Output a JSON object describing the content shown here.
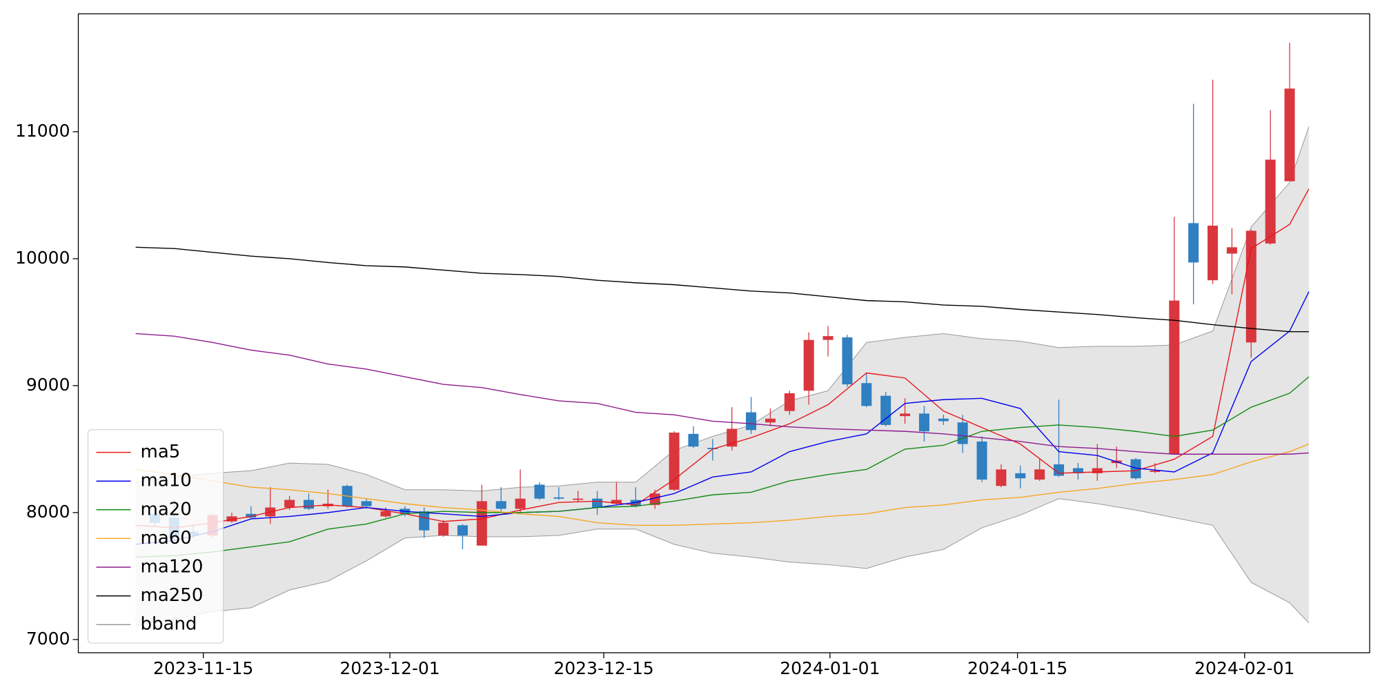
{
  "chart_data": {
    "type": "candlestick",
    "xlim": [
      -3.98,
      63.16
    ],
    "ylim": [
      6896,
      11929
    ],
    "xticks": [
      {
        "value": 2.52,
        "label": "2023-11-15"
      },
      {
        "value": 12.22,
        "label": "2023-12-01"
      },
      {
        "value": 23.34,
        "label": "2023-12-15"
      },
      {
        "value": 35.1,
        "label": "2024-01-01"
      },
      {
        "value": 44.85,
        "label": "2024-01-15"
      },
      {
        "value": 56.66,
        "label": "2024-02-01"
      }
    ],
    "yticks": [
      7000,
      8000,
      9000,
      10000,
      11000
    ],
    "legend": "lower left",
    "up_color": "#d9363e",
    "down_color": "#2f7fc1",
    "candles": {
      "x": [
        0,
        1,
        2,
        3,
        4,
        5,
        6,
        7,
        8,
        9,
        10,
        11,
        12,
        13,
        14,
        15,
        16,
        17,
        18,
        19,
        20,
        21,
        22,
        23,
        24,
        25,
        26,
        27,
        28,
        29,
        30,
        31,
        32,
        33,
        34,
        35,
        36,
        37,
        38,
        39,
        40,
        41,
        42,
        43,
        44,
        45,
        46,
        47,
        48,
        49,
        50,
        51,
        52,
        53,
        54,
        55,
        56,
        57,
        58,
        59
      ],
      "open": [
        7990,
        7960,
        7850,
        7820,
        7930,
        7990,
        7970,
        8040,
        8100,
        8050,
        8210,
        8090,
        7970,
        8030,
        8010,
        7820,
        7900,
        7740,
        8090,
        8030,
        8220,
        8120,
        8100,
        8110,
        8070,
        8100,
        8060,
        8180,
        8620,
        8510,
        8520,
        8790,
        8710,
        8800,
        8960,
        9360,
        9380,
        9020,
        8920,
        8760,
        8780,
        8740,
        8710,
        8560,
        8210,
        8310,
        8260,
        8380,
        8350,
        8310,
        8390,
        8420,
        8320,
        8460,
        10280,
        9830,
        10040,
        9340,
        10120,
        10610
      ],
      "high": [
        8000,
        8100,
        7900,
        7990,
        8000,
        8050,
        8200,
        8130,
        8150,
        8180,
        8220,
        8110,
        8040,
        8050,
        8040,
        7940,
        7910,
        8220,
        8200,
        8340,
        8240,
        8200,
        8170,
        8170,
        8240,
        8200,
        8180,
        8640,
        8680,
        8580,
        8830,
        8910,
        8820,
        8960,
        9420,
        9470,
        9400,
        9100,
        8950,
        8900,
        8840,
        8770,
        8770,
        8600,
        8380,
        8370,
        8420,
        8890,
        8390,
        8540,
        8520,
        8430,
        8390,
        10330,
        11220,
        11410,
        10240,
        10230,
        11170,
        11700
      ],
      "low": [
        7890,
        7780,
        7800,
        7800,
        7920,
        7950,
        7910,
        8020,
        8020,
        8030,
        8040,
        8030,
        7960,
        7970,
        7800,
        7810,
        7710,
        7740,
        8010,
        8000,
        8100,
        8100,
        8080,
        7980,
        8060,
        8040,
        8030,
        8170,
        8510,
        8410,
        8490,
        8620,
        8680,
        8770,
        8850,
        9230,
        8990,
        8830,
        8680,
        8700,
        8560,
        8690,
        8470,
        8240,
        8200,
        8190,
        8250,
        8280,
        8260,
        8250,
        8350,
        8260,
        8310,
        8460,
        9640,
        9800,
        9720,
        9220,
        10110,
        10610
      ],
      "close": [
        7920,
        7800,
        7820,
        7980,
        7970,
        7960,
        8040,
        8100,
        8030,
        8070,
        8050,
        8050,
        8010,
        7990,
        7860,
        7920,
        7820,
        8090,
        8030,
        8110,
        8110,
        8110,
        8110,
        8040,
        8100,
        8050,
        8150,
        8630,
        8520,
        8500,
        8660,
        8650,
        8740,
        8940,
        9360,
        9390,
        9010,
        8840,
        8690,
        8780,
        8640,
        8720,
        8540,
        8260,
        8340,
        8270,
        8340,
        8290,
        8310,
        8350,
        8410,
        8270,
        8330,
        9670,
        9970,
        10260,
        10090,
        10220,
        10780,
        11340
      ]
    },
    "line_x": [
      -1,
      1,
      3,
      5,
      7,
      9,
      11,
      13,
      15,
      17,
      19,
      21,
      23,
      25,
      27,
      29,
      31,
      33,
      35,
      37,
      39,
      41,
      43,
      45,
      47,
      49,
      51,
      53,
      55,
      57,
      59,
      60
    ],
    "bband": {
      "name": "bband",
      "color": "#999999",
      "fill": "#e5e5e5",
      "upper": [
        8240,
        8280,
        8310,
        8330,
        8390,
        8380,
        8300,
        8180,
        8180,
        8170,
        8200,
        8210,
        8240,
        8240,
        8490,
        8600,
        8690,
        8880,
        8960,
        9340,
        9380,
        9410,
        9370,
        9350,
        9300,
        9310,
        9310,
        9320,
        9430,
        10250,
        10600,
        11040
      ],
      "lower": [
        7110,
        7160,
        7220,
        7250,
        7390,
        7460,
        7620,
        7800,
        7820,
        7810,
        7810,
        7820,
        7870,
        7870,
        7750,
        7680,
        7650,
        7610,
        7590,
        7560,
        7650,
        7710,
        7880,
        7980,
        8110,
        8070,
        8020,
        7960,
        7900,
        7450,
        7290,
        7130
      ]
    },
    "series": [
      {
        "name": "ma5",
        "color": "#e8161b",
        "values": [
          7900,
          7880,
          7920,
          7970,
          8040,
          8060,
          8040,
          7990,
          7930,
          7950,
          8020,
          8080,
          8090,
          8060,
          8260,
          8500,
          8590,
          8700,
          8850,
          9100,
          9060,
          8800,
          8670,
          8540,
          8310,
          8320,
          8330,
          8420,
          8600,
          10080,
          10270,
          10550
        ]
      },
      {
        "name": "ma10",
        "color": "#0000ee",
        "values": [
          7750,
          7780,
          7850,
          7950,
          7970,
          8000,
          8040,
          8010,
          7990,
          7970,
          8000,
          8010,
          8040,
          8080,
          8150,
          8280,
          8320,
          8480,
          8560,
          8620,
          8860,
          8890,
          8900,
          8820,
          8480,
          8450,
          8350,
          8320,
          8470,
          9190,
          9430,
          9740
        ]
      },
      {
        "name": "ma20",
        "color": "#138a13",
        "values": [
          7650,
          7660,
          7690,
          7730,
          7770,
          7870,
          7910,
          7990,
          8010,
          8000,
          8000,
          8010,
          8040,
          8050,
          8090,
          8140,
          8160,
          8250,
          8300,
          8340,
          8500,
          8530,
          8640,
          8670,
          8690,
          8670,
          8640,
          8600,
          8650,
          8830,
          8940,
          9070
        ]
      },
      {
        "name": "ma60",
        "color": "#f5a623",
        "values": [
          8340,
          8300,
          8250,
          8200,
          8180,
          8150,
          8110,
          8070,
          8040,
          8020,
          7990,
          7970,
          7920,
          7900,
          7900,
          7910,
          7920,
          7940,
          7970,
          7990,
          8040,
          8060,
          8100,
          8120,
          8160,
          8190,
          8230,
          8260,
          8300,
          8400,
          8480,
          8540
        ]
      },
      {
        "name": "ma120",
        "color": "#8e1a8e",
        "values": [
          9410,
          9390,
          9340,
          9280,
          9240,
          9170,
          9130,
          9070,
          9010,
          8985,
          8930,
          8880,
          8860,
          8790,
          8770,
          8720,
          8700,
          8675,
          8660,
          8650,
          8640,
          8620,
          8590,
          8560,
          8520,
          8505,
          8480,
          8460,
          8460,
          8460,
          8460,
          8470
        ]
      },
      {
        "name": "ma250",
        "color": "#000000",
        "values": [
          10090,
          10080,
          10050,
          10020,
          10000,
          9970,
          9945,
          9935,
          9910,
          9885,
          9875,
          9860,
          9830,
          9810,
          9795,
          9770,
          9745,
          9730,
          9700,
          9670,
          9660,
          9635,
          9625,
          9600,
          9580,
          9560,
          9535,
          9515,
          9480,
          9450,
          9425,
          9425
        ]
      }
    ]
  }
}
